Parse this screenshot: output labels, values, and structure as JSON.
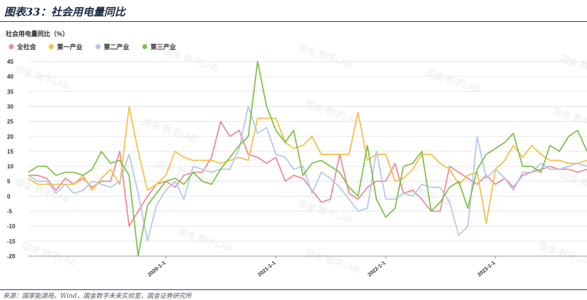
{
  "header": {
    "title": "图表33：社会用电量同比"
  },
  "footer": {
    "source": "来源：国家能源局，Wind，国金数字未来实验室，国金证券研究所"
  },
  "watermark": {
    "text": "国金 数字LAB"
  },
  "colors": {
    "axis": "#999999",
    "grid": "#e6e6e6",
    "tick": "#333333"
  },
  "chart_data": {
    "type": "line",
    "ylabel": "社会用电量同比（%）",
    "ylim": [
      -20,
      45
    ],
    "yticks": [
      -20,
      -15,
      -10,
      -5,
      0,
      5,
      10,
      15,
      20,
      25,
      30,
      35,
      40,
      45
    ],
    "xlim": [
      "2018-10-01",
      "2023-11-01"
    ],
    "xticks": [
      "2020-1-1",
      "2021-1-1",
      "2022-1-1",
      "2023-1-1"
    ],
    "xtick_dates": [
      "2020-01-01",
      "2021-01-01",
      "2022-01-01",
      "2023-01-01"
    ],
    "legend_position": "top-left",
    "grid": "horizontal",
    "x": [
      "2018-10",
      "2018-11",
      "2018-12",
      "2019-01",
      "2019-02",
      "2019-03",
      "2019-04",
      "2019-05",
      "2019-06",
      "2019-07",
      "2019-08",
      "2019-09",
      "2019-10",
      "2019-11",
      "2019-12",
      "2020-01",
      "2020-02",
      "2020-03",
      "2020-04",
      "2020-05",
      "2020-06",
      "2020-07",
      "2020-08",
      "2020-09",
      "2020-10",
      "2020-11",
      "2020-12",
      "2021-01",
      "2021-02",
      "2021-03",
      "2021-04",
      "2021-05",
      "2021-06",
      "2021-07",
      "2021-08",
      "2021-09",
      "2021-10",
      "2021-11",
      "2021-12",
      "2022-01",
      "2022-02",
      "2022-03",
      "2022-04",
      "2022-05",
      "2022-06",
      "2022-07",
      "2022-08",
      "2022-09",
      "2022-10",
      "2022-11",
      "2022-12",
      "2023-01",
      "2023-02",
      "2023-03",
      "2023-04",
      "2023-05",
      "2023-06",
      "2023-07",
      "2023-08",
      "2023-09",
      "2023-10",
      "2023-11"
    ],
    "series": [
      {
        "name": "全社会",
        "color": "#ee8b97",
        "values": [
          7,
          7,
          6,
          2,
          6,
          4,
          6,
          3,
          5,
          5,
          15,
          -10,
          -5,
          0,
          4,
          5,
          3,
          7,
          8,
          8,
          13,
          25,
          20,
          22,
          14,
          13,
          11,
          13,
          5,
          7,
          6,
          2,
          -2,
          -1,
          14,
          1,
          -1,
          3,
          5,
          5,
          11,
          1,
          2,
          -1,
          -5,
          -5,
          10,
          8,
          6,
          4,
          7,
          4,
          6,
          3,
          7,
          8,
          9,
          10,
          9,
          9,
          8,
          9
        ]
      },
      {
        "name": "第一产业",
        "color": "#f5c04a",
        "values": [
          6,
          4,
          4,
          4,
          4,
          4,
          7,
          2,
          6,
          9,
          4,
          30,
          15,
          2,
          4,
          7,
          15,
          13,
          12,
          12,
          12,
          11,
          12,
          13,
          12,
          26,
          26,
          26,
          18,
          16,
          17,
          20,
          14,
          14,
          14,
          14,
          28,
          12,
          14,
          14,
          5,
          6,
          9,
          14,
          14,
          11,
          9,
          4,
          7,
          8,
          -9,
          9,
          12,
          17,
          13,
          17,
          14,
          12,
          12,
          11,
          11,
          12
        ]
      },
      {
        "name": "第二产业",
        "color": "#b4c8ec",
        "values": [
          7,
          5,
          5,
          1,
          4,
          1,
          2,
          5,
          4,
          3,
          5,
          14,
          1,
          -15,
          -3,
          2,
          5,
          -1,
          10,
          9,
          8,
          9,
          9,
          16,
          30,
          21,
          23,
          14,
          13,
          9,
          10,
          1,
          8,
          6,
          3,
          -1,
          -5,
          -4,
          15,
          -1,
          -1,
          1,
          0,
          4,
          3,
          3,
          -2,
          -13,
          -10,
          20,
          6,
          9,
          6,
          2,
          8,
          8,
          11,
          9,
          9,
          10,
          11,
          10
        ]
      },
      {
        "name": "第三产业",
        "color": "#7fc14e",
        "values": [
          8,
          10,
          10,
          7,
          8,
          8,
          7,
          9,
          15,
          11,
          12,
          7,
          -20,
          -3,
          1,
          5,
          6,
          4,
          8,
          5,
          4,
          9,
          13,
          17,
          20,
          45,
          30,
          22,
          18,
          22,
          7,
          11,
          12,
          10,
          8,
          3,
          0,
          17,
          -1,
          -7,
          -4,
          10,
          11,
          15,
          -5,
          -2,
          3,
          5,
          -4,
          9,
          14,
          16,
          18,
          21,
          10,
          10,
          8,
          17,
          15,
          20,
          22,
          15
        ]
      }
    ]
  }
}
